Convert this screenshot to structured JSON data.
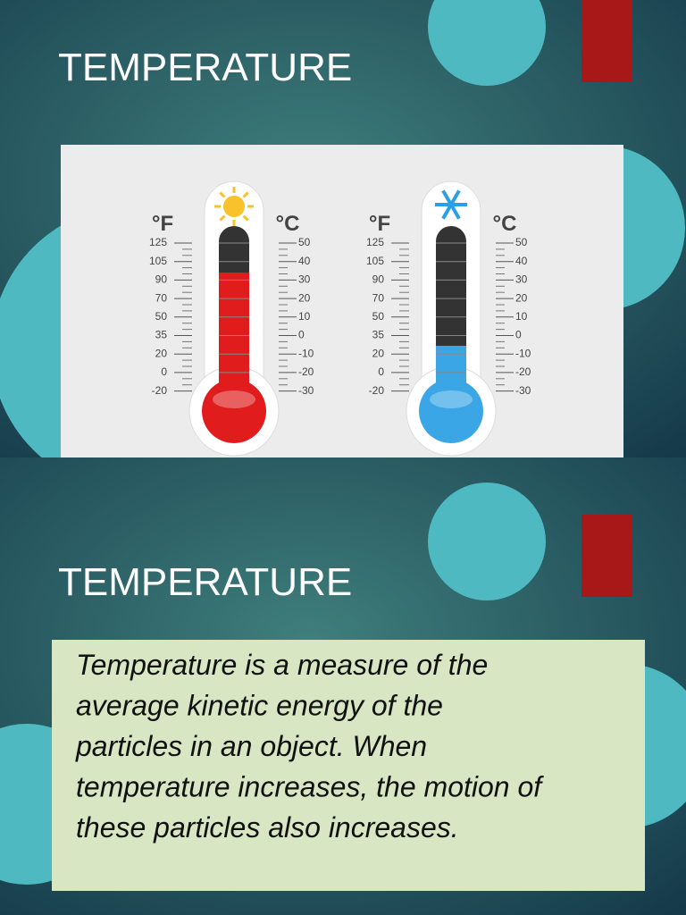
{
  "slides": [
    {
      "title": "TEMPERATURE",
      "thermometers": [
        {
          "f_unit": "°F",
          "c_unit": "°C",
          "f_ticks": [
            "125",
            "105",
            "90",
            "70",
            "50",
            "35",
            "20",
            "0",
            "-20"
          ],
          "c_ticks": [
            "50",
            "40",
            "30",
            "20",
            "10",
            "0",
            "-10",
            "-20",
            "-30"
          ]
        },
        {
          "f_unit": "°F",
          "c_unit": "°C",
          "f_ticks": [
            "125",
            "105",
            "90",
            "70",
            "50",
            "35",
            "20",
            "0",
            "-20"
          ],
          "c_ticks": [
            "50",
            "40",
            "30",
            "20",
            "10",
            "0",
            "-10",
            "-20",
            "-30"
          ]
        }
      ]
    },
    {
      "title": "TEMPERATURE",
      "body": [
        "Temperature is a measure of the",
        "average kinetic energy of the",
        "particles in an object. When",
        "temperature increases, the motion of",
        "these particles also increases."
      ]
    }
  ]
}
